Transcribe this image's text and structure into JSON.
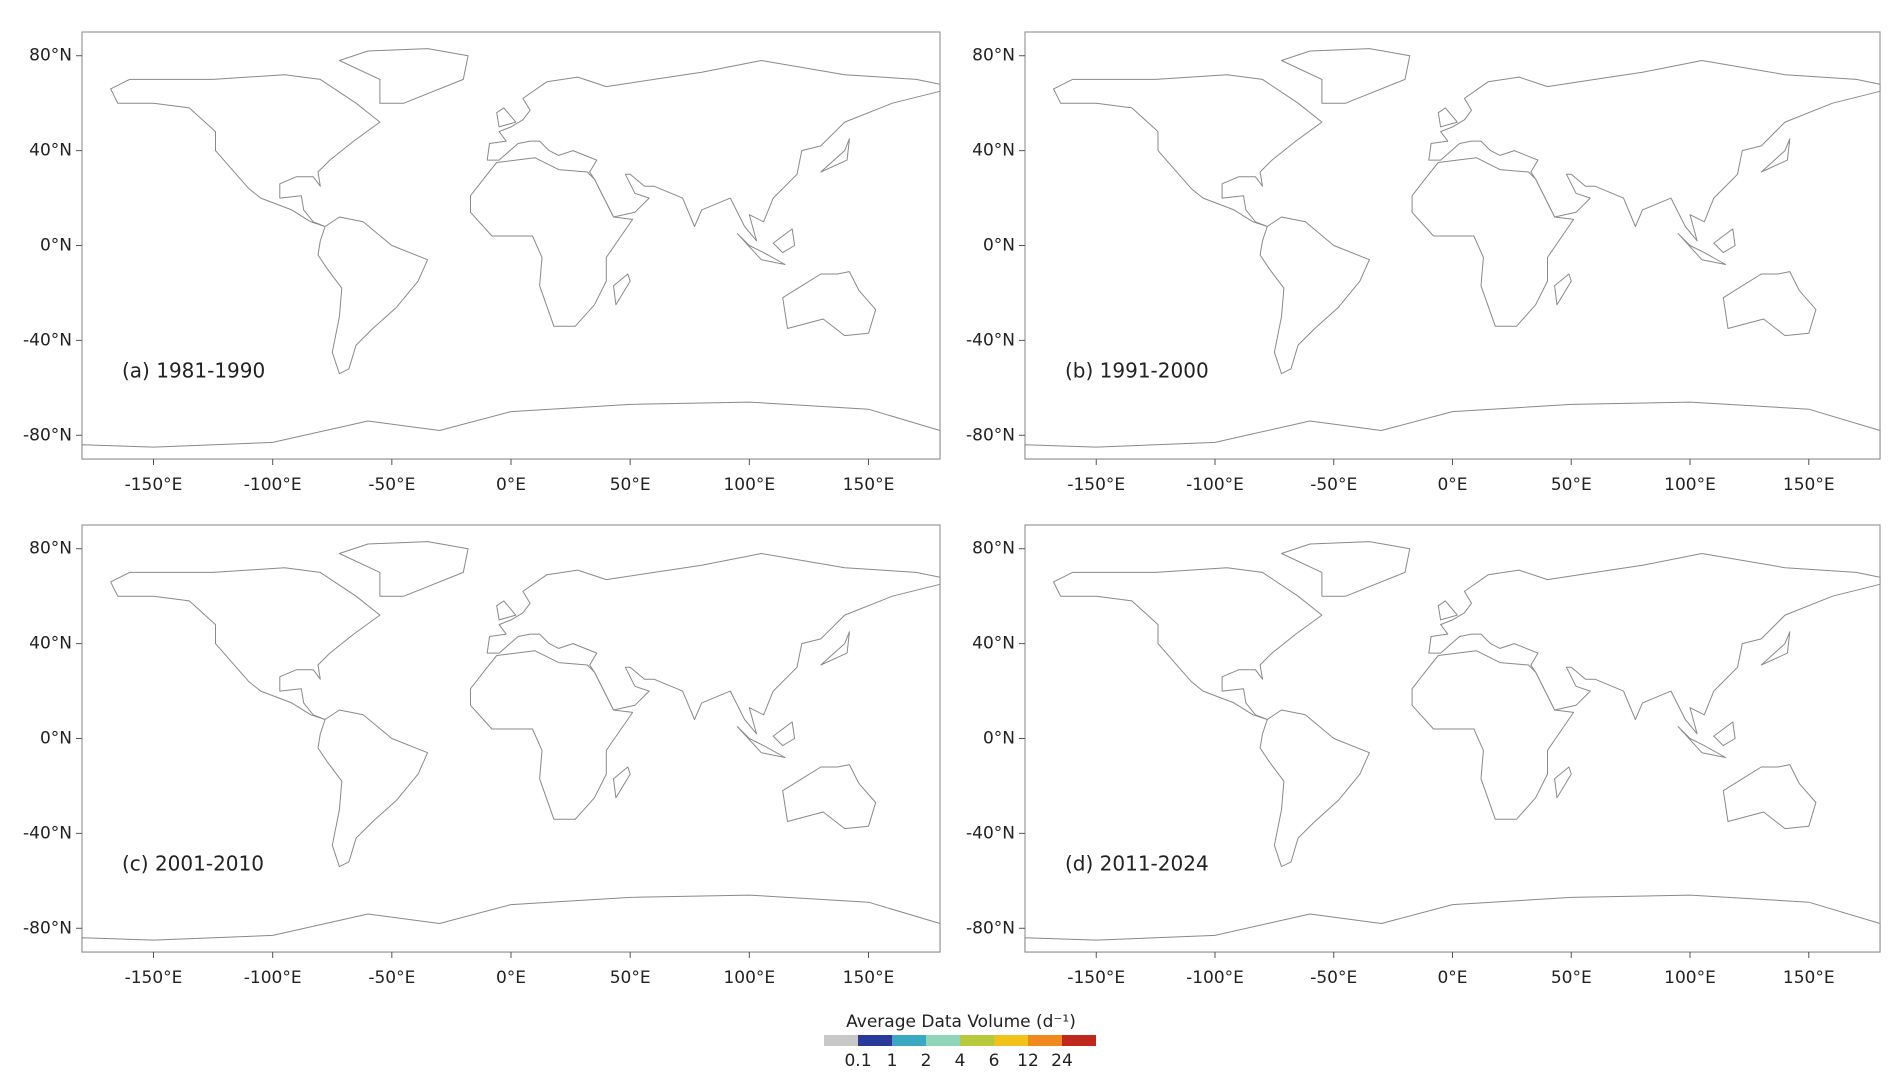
{
  "panels": [
    {
      "label": "(a) 1981-1990"
    },
    {
      "label": "(b) 1991-2000"
    },
    {
      "label": "(c) 2001-2010"
    },
    {
      "label": "(d) 2011-2024"
    }
  ],
  "map": {
    "xlim": [
      -180,
      180
    ],
    "ylim": [
      -90,
      90
    ],
    "xticks": [
      {
        "value": -150,
        "label": "-150°E"
      },
      {
        "value": -100,
        "label": "-100°E"
      },
      {
        "value": -50,
        "label": "-50°E"
      },
      {
        "value": 0,
        "label": "0°E"
      },
      {
        "value": 50,
        "label": "50°E"
      },
      {
        "value": 100,
        "label": "100°E"
      },
      {
        "value": 150,
        "label": "150°E"
      }
    ],
    "yticks": [
      {
        "value": 80,
        "label": "80°N"
      },
      {
        "value": 40,
        "label": "40°N"
      },
      {
        "value": 0,
        "label": "0°N"
      },
      {
        "value": -40,
        "label": "-40°N"
      },
      {
        "value": -80,
        "label": "-80°N"
      }
    ]
  },
  "legend": {
    "title": "Average Data Volume (d⁻¹)",
    "colors": [
      "#c8c8c8",
      "#2a3a9a",
      "#3aa8c0",
      "#8fd6b8",
      "#b6c83c",
      "#f2c21a",
      "#f08a1e",
      "#c0281e"
    ],
    "bounds": [
      0.1,
      1,
      2,
      4,
      6,
      12,
      24
    ]
  }
}
